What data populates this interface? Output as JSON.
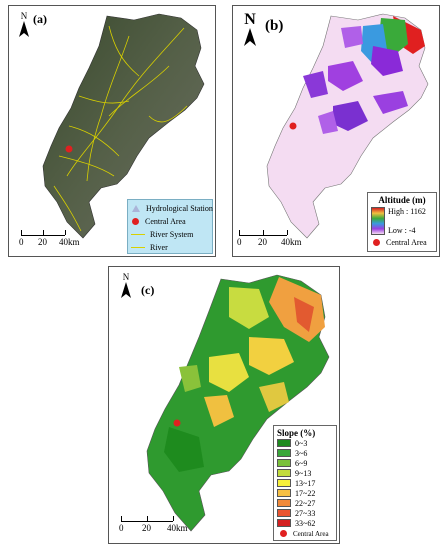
{
  "panels": {
    "a": {
      "label": "(a)",
      "legend": [
        {
          "symbol": "triangle",
          "text": "Hydrological Station"
        },
        {
          "symbol": "dot",
          "text": "Central Area"
        },
        {
          "symbol": "line",
          "text": "River System"
        },
        {
          "symbol": "line",
          "text": "River"
        }
      ]
    },
    "b": {
      "label": "(b)",
      "legend_title": "Altitude (m)",
      "legend_high": "High : 1162",
      "legend_low": "Low : -4",
      "legend_central": "Central Area"
    },
    "c": {
      "label": "(c)",
      "legend_title": "Slope (%)",
      "classes": [
        {
          "text": "0~3",
          "color": "#1e8b1e"
        },
        {
          "text": "3~6",
          "color": "#39a739"
        },
        {
          "text": "6~9",
          "color": "#7ac13a"
        },
        {
          "text": "9~13",
          "color": "#c2dc3c"
        },
        {
          "text": "13~17",
          "color": "#f7f03a"
        },
        {
          "text": "17~22",
          "color": "#f5c044"
        },
        {
          "text": "22~27",
          "color": "#f08a3a"
        },
        {
          "text": "27~33",
          "color": "#ea5530"
        },
        {
          "text": "33~62",
          "color": "#d42020"
        }
      ],
      "legend_central": "Central Area"
    }
  },
  "scale": {
    "labels": [
      "0",
      "20",
      "40km"
    ]
  },
  "north_label": "N",
  "colors": {
    "central_area": "#e02020",
    "river": "#d8d000"
  }
}
